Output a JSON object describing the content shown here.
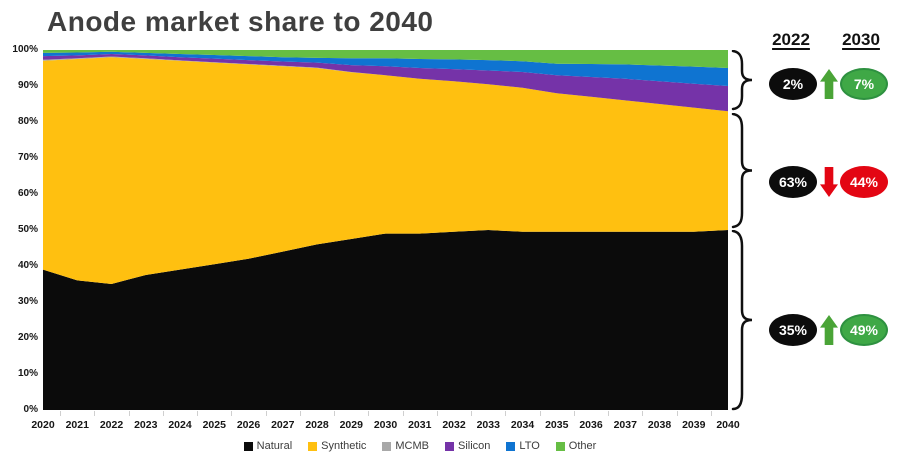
{
  "title": "Anode market share to 2040",
  "colors": {
    "natural": "#0b0b0b",
    "synthetic": "#ffc010",
    "mcmb": "#a8a8a8",
    "silicon": "#7533a8",
    "lto": "#0f74d1",
    "other": "#66be44",
    "title_text": "#3f3f3f",
    "badge_black": "#0c0c0c",
    "badge_green": "#3fa846",
    "badge_red": "#e30613",
    "arrow_up_green": "#4aa437",
    "arrow_down_red": "#e30613"
  },
  "chart_data": {
    "type": "area",
    "stacked": true,
    "title": "Anode market share to 2040",
    "x": [
      2020,
      2021,
      2022,
      2023,
      2024,
      2025,
      2026,
      2027,
      2028,
      2029,
      2030,
      2031,
      2032,
      2033,
      2034,
      2035,
      2036,
      2037,
      2038,
      2039,
      2040
    ],
    "series": [
      {
        "name": "Natural",
        "color": "#0b0b0b",
        "values": [
          39,
          36,
          35,
          37.5,
          39,
          40.5,
          42,
          44,
          46,
          47.5,
          49,
          49,
          49.5,
          50,
          49.5,
          49.5,
          49.5,
          49.5,
          49.5,
          49.5,
          50
        ]
      },
      {
        "name": "Synthetic",
        "color": "#ffc010",
        "values": [
          58,
          61.5,
          63,
          60,
          58,
          56,
          54,
          51.5,
          49,
          46.3,
          44,
          43,
          41.8,
          40.5,
          40,
          38.5,
          37.5,
          36.5,
          35.5,
          34.5,
          33
        ]
      },
      {
        "name": "MCMB",
        "color": "#a8a8a8",
        "values": [
          0.3,
          0.2,
          0.2,
          0.2,
          0.1,
          0.1,
          0.1,
          0.1,
          0.1,
          0.1,
          0,
          0,
          0,
          0,
          0,
          0,
          0,
          0,
          0,
          0,
          0
        ]
      },
      {
        "name": "Silicon",
        "color": "#7533a8",
        "values": [
          1.0,
          0.8,
          0.7,
          0.8,
          0.9,
          1.0,
          1.1,
          1.2,
          1.4,
          1.9,
          2.5,
          3.0,
          3.4,
          3.8,
          4.4,
          5.0,
          5.5,
          6.0,
          6.3,
          6.6,
          7.0
        ]
      },
      {
        "name": "LTO",
        "color": "#0f74d1",
        "values": [
          0.9,
          0.8,
          0.6,
          0.7,
          0.9,
          1.0,
          1.1,
          1.2,
          1.3,
          1.9,
          2.2,
          2.5,
          2.7,
          2.9,
          3.0,
          3.2,
          3.6,
          4.0,
          4.4,
          4.8,
          5.0
        ]
      },
      {
        "name": "Other",
        "color": "#66be44",
        "values": [
          0.8,
          0.7,
          0.5,
          0.8,
          1.1,
          1.4,
          1.7,
          2.0,
          2.2,
          2.3,
          2.3,
          2.5,
          2.6,
          2.8,
          3.1,
          3.8,
          3.9,
          4.0,
          4.3,
          4.6,
          5.0
        ]
      }
    ],
    "ylim": [
      0,
      100
    ],
    "y_tick_labels": [
      "100%",
      "90%",
      "80%",
      "70%",
      "60%",
      "50%",
      "40%",
      "30%",
      "20%",
      "10%",
      "0%"
    ],
    "x_tick_labels": [
      "2020",
      "2021",
      "2022",
      "2023",
      "2024",
      "2025",
      "2026",
      "2027",
      "2028",
      "2029",
      "2030",
      "2031",
      "2032",
      "2033",
      "2034",
      "2035",
      "2036",
      "2037",
      "2038",
      "2039",
      "2040"
    ],
    "grid": false,
    "legend_position": "bottom"
  },
  "legend": [
    {
      "label": "Natural",
      "color": "#0b0b0b"
    },
    {
      "label": "Synthetic",
      "color": "#ffc010"
    },
    {
      "label": "MCMB",
      "color": "#a8a8a8"
    },
    {
      "label": "Silicon",
      "color": "#7533a8"
    },
    {
      "label": "LTO",
      "color": "#0f74d1"
    },
    {
      "label": "Other",
      "color": "#66be44"
    }
  ],
  "comparison": {
    "col_headers": [
      "2022",
      "2030"
    ],
    "rows": [
      {
        "group": "other-anodes",
        "from": "2%",
        "to": "7%",
        "direction": "up",
        "to_color": "green"
      },
      {
        "group": "synthetic",
        "from": "63%",
        "to": "44%",
        "direction": "down",
        "to_color": "red"
      },
      {
        "group": "natural",
        "from": "35%",
        "to": "49%",
        "direction": "up",
        "to_color": "green"
      }
    ]
  }
}
